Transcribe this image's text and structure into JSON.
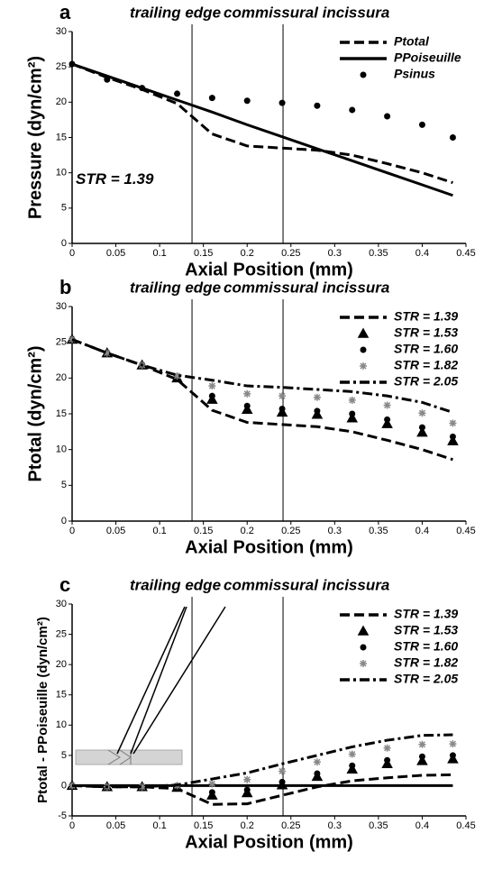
{
  "chart_data": [
    {
      "type": "line",
      "panel_label": "a",
      "xlabel": "Axial Position (mm)",
      "ylabel": "Pressure (dyn/cm²)",
      "xlim": [
        0,
        0.45
      ],
      "xticks": [
        0,
        0.05,
        0.1,
        0.15,
        0.2,
        0.25,
        0.3,
        0.35,
        0.4,
        0.45
      ],
      "ylim": [
        0,
        30
      ],
      "yticks": [
        0,
        5,
        10,
        15,
        20,
        25,
        30
      ],
      "vlines": [
        0.137,
        0.241
      ],
      "vline_labels": [
        "trailing edge",
        "commissural incissura"
      ],
      "annotation": "STR = 1.39",
      "legend": "upper right",
      "x": [
        0,
        0.04,
        0.08,
        0.12,
        0.16,
        0.2,
        0.24,
        0.28,
        0.32,
        0.36,
        0.4,
        0.435
      ],
      "series": [
        {
          "name": "Ptotal",
          "color": "#000000",
          "line": "dashed",
          "values": [
            25.4,
            23.5,
            21.8,
            19.8,
            15.5,
            13.8,
            13.5,
            13.2,
            12.5,
            11.3,
            10.0,
            8.6
          ]
        },
        {
          "name": "PPoiseuille",
          "color": "#000000",
          "line": "solid",
          "values": [
            25.4,
            23.7,
            22.0,
            20.3,
            18.6,
            16.8,
            15.1,
            13.4,
            11.7,
            10.0,
            8.3,
            6.8
          ]
        },
        {
          "name": "Psinus",
          "color": "#000000",
          "marker": "circle",
          "values": [
            25.4,
            23.2,
            22.0,
            21.2,
            20.6,
            20.2,
            19.9,
            19.5,
            18.9,
            18.0,
            16.8,
            15.0
          ]
        }
      ]
    },
    {
      "type": "line",
      "panel_label": "b",
      "xlabel": "Axial Position (mm)",
      "ylabel": "Ptotal (dyn/cm²)",
      "xlim": [
        0,
        0.45
      ],
      "xticks": [
        0,
        0.05,
        0.1,
        0.15,
        0.2,
        0.25,
        0.3,
        0.35,
        0.4,
        0.45
      ],
      "ylim": [
        0,
        30
      ],
      "yticks": [
        0,
        5,
        10,
        15,
        20,
        25,
        30
      ],
      "vlines": [
        0.137,
        0.241
      ],
      "vline_labels": [
        "trailing edge",
        "commissural incissura"
      ],
      "legend": "upper right",
      "x": [
        0,
        0.04,
        0.08,
        0.12,
        0.16,
        0.2,
        0.24,
        0.28,
        0.32,
        0.36,
        0.4,
        0.435
      ],
      "series": [
        {
          "name": "STR = 1.39",
          "color": "#000000",
          "line": "dashed",
          "values": [
            25.4,
            23.5,
            21.8,
            19.8,
            15.5,
            13.8,
            13.5,
            13.2,
            12.5,
            11.3,
            10.0,
            8.6
          ]
        },
        {
          "name": "STR = 1.53",
          "color": "#000000",
          "marker": "triangle",
          "values": [
            25.4,
            23.5,
            21.8,
            20.0,
            17.0,
            15.6,
            15.2,
            14.9,
            14.4,
            13.6,
            12.4,
            11.2
          ]
        },
        {
          "name": "STR = 1.60",
          "color": "#000000",
          "marker": "circle",
          "values": [
            25.4,
            23.5,
            21.8,
            20.1,
            17.5,
            16.1,
            15.7,
            15.4,
            15.0,
            14.2,
            13.1,
            11.8
          ]
        },
        {
          "name": "STR = 1.82",
          "color": "#888888",
          "marker": "asterisk",
          "values": [
            25.4,
            23.5,
            21.8,
            20.3,
            18.9,
            17.8,
            17.5,
            17.3,
            16.9,
            16.2,
            15.1,
            13.7
          ]
        },
        {
          "name": "STR = 2.05",
          "color": "#000000",
          "line": "dashdot",
          "values": [
            25.4,
            23.5,
            21.8,
            20.4,
            19.7,
            18.9,
            18.7,
            18.4,
            18.1,
            17.5,
            16.6,
            15.2
          ]
        }
      ]
    },
    {
      "type": "line",
      "panel_label": "c",
      "xlabel": "Axial Position (mm)",
      "ylabel": "Ptotal - PPoiseuille (dyn/cm²)",
      "xlim": [
        0,
        0.45
      ],
      "xticks": [
        0,
        0.05,
        0.1,
        0.15,
        0.2,
        0.25,
        0.3,
        0.35,
        0.4,
        0.45
      ],
      "ylim": [
        -5,
        30
      ],
      "yticks": [
        -5,
        0,
        5,
        10,
        15,
        20,
        25,
        30
      ],
      "vlines": [
        0.137,
        0.241
      ],
      "vline_labels": [
        "trailing edge",
        "commissural incissura"
      ],
      "hline": 0,
      "legend": "upper right",
      "x": [
        0,
        0.04,
        0.08,
        0.12,
        0.16,
        0.2,
        0.24,
        0.28,
        0.32,
        0.36,
        0.4,
        0.435
      ],
      "series": [
        {
          "name": "STR = 1.39",
          "color": "#000000",
          "line": "dashed",
          "values": [
            0,
            -0.2,
            -0.2,
            -0.5,
            -3.1,
            -3.0,
            -1.6,
            -0.2,
            0.8,
            1.3,
            1.7,
            1.8
          ]
        },
        {
          "name": "STR = 1.53",
          "color": "#000000",
          "marker": "triangle",
          "values": [
            0,
            -0.2,
            -0.2,
            -0.3,
            -1.6,
            -1.2,
            0.1,
            1.5,
            2.7,
            3.6,
            4.1,
            4.4
          ]
        },
        {
          "name": "STR = 1.60",
          "color": "#000000",
          "marker": "circle",
          "values": [
            0,
            -0.2,
            -0.2,
            -0.2,
            -1.1,
            -0.7,
            0.6,
            2.0,
            3.3,
            4.2,
            4.8,
            5.0
          ]
        },
        {
          "name": "STR = 1.82",
          "color": "#888888",
          "marker": "asterisk",
          "values": [
            0,
            -0.2,
            -0.2,
            0.0,
            0.3,
            1.0,
            2.4,
            3.9,
            5.2,
            6.2,
            6.8,
            6.9
          ]
        },
        {
          "name": "STR = 2.05",
          "color": "#000000",
          "line": "dashdot",
          "values": [
            0,
            -0.2,
            -0.2,
            0.1,
            1.1,
            2.1,
            3.6,
            5.0,
            6.4,
            7.5,
            8.3,
            8.4
          ]
        }
      ]
    }
  ]
}
